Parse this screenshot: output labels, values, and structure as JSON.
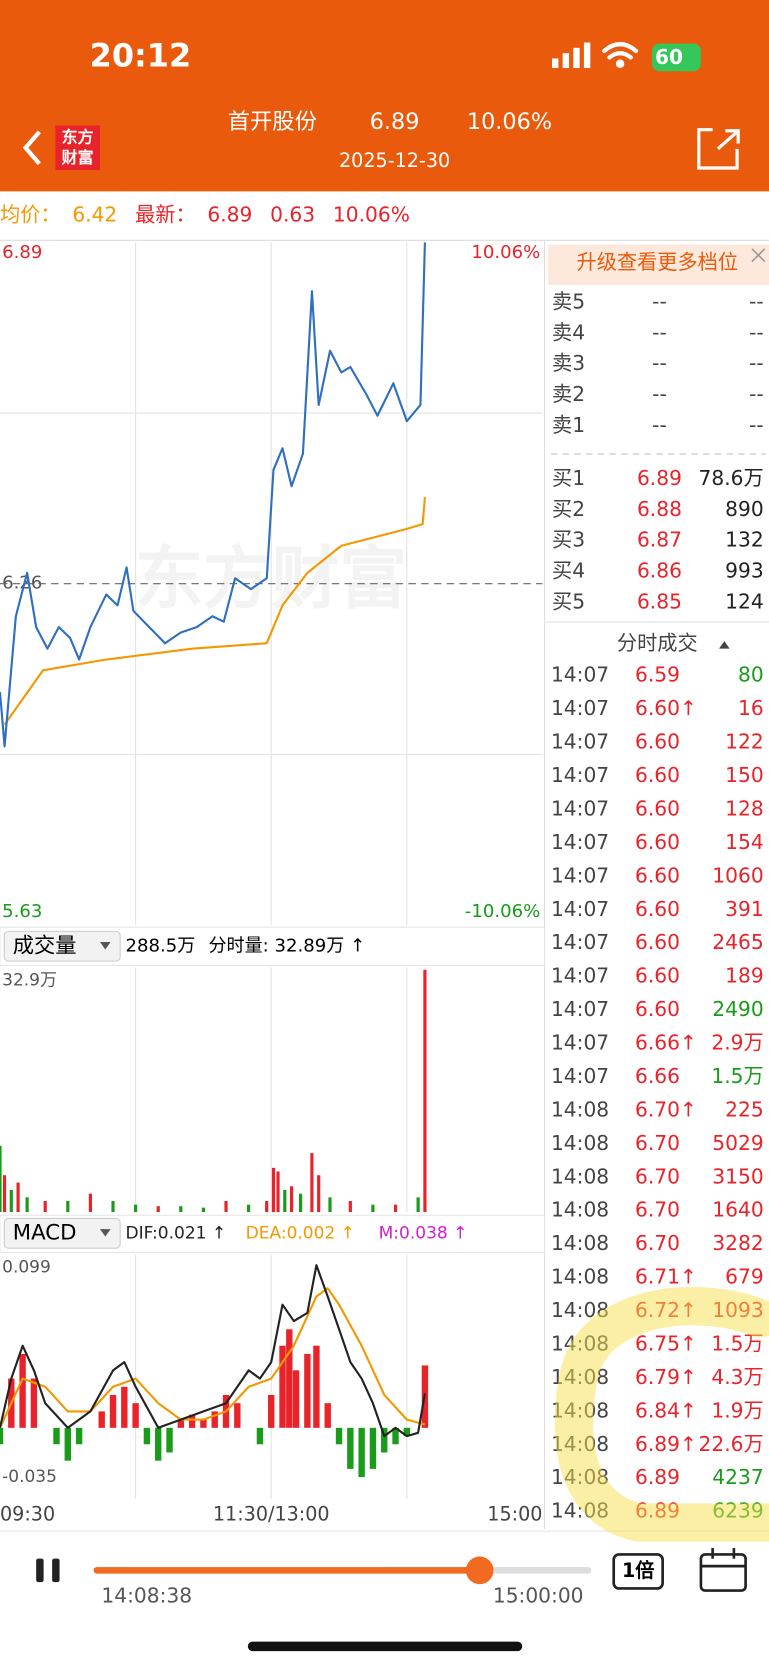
{
  "status_bar": {
    "time": "20:12",
    "battery": "60"
  },
  "header": {
    "logo": [
      "东方",
      "财富"
    ],
    "name": "首开股份",
    "price": "6.89",
    "change_pct": "10.06%",
    "date": "2025-12-30"
  },
  "quote": {
    "avg_label": "均价：",
    "avg": "6.42",
    "latest_label": "最新：",
    "latest": "6.89",
    "change": "0.63",
    "change_pct": "10.06%"
  },
  "intraday": {
    "xlim": [
      0,
      240
    ],
    "xticks": [
      {
        "value": 0,
        "label": "09:30"
      },
      {
        "value": 120,
        "label": "11:30/13:00"
      },
      {
        "value": 240,
        "label": "15:00"
      }
    ],
    "grid_x": [
      60,
      120,
      180
    ],
    "ylim": [
      5.63,
      6.89
    ],
    "yticks": [
      5.63,
      6.26,
      6.89
    ],
    "pct_labels": [
      "10.06%",
      "-10.06%"
    ],
    "watermark": "东方财富",
    "price": {
      "color": "#2f6fc0",
      "x": [
        0,
        2,
        7,
        12,
        16,
        21,
        26,
        31,
        35,
        40,
        47,
        52,
        56,
        59,
        66,
        73,
        80,
        87,
        94,
        99,
        104,
        111,
        118,
        121,
        125,
        129,
        134,
        138,
        141,
        146,
        151,
        155,
        162,
        167,
        174,
        180,
        186,
        188
      ],
      "values": [
        6.06,
        5.96,
        6.2,
        6.28,
        6.18,
        6.14,
        6.18,
        6.16,
        6.12,
        6.18,
        6.24,
        6.22,
        6.29,
        6.21,
        6.18,
        6.15,
        6.17,
        6.18,
        6.2,
        6.19,
        6.27,
        6.25,
        6.27,
        6.47,
        6.51,
        6.44,
        6.5,
        6.8,
        6.59,
        6.69,
        6.65,
        6.66,
        6.61,
        6.57,
        6.63,
        6.56,
        6.59,
        6.89
      ]
    },
    "avg": {
      "color": "#f39800",
      "x": [
        2,
        19,
        47,
        85,
        118,
        125,
        136,
        151,
        179,
        187,
        188
      ],
      "values": [
        6.0,
        6.1,
        6.12,
        6.14,
        6.15,
        6.22,
        6.28,
        6.33,
        6.36,
        6.37,
        6.42
      ]
    }
  },
  "volume": {
    "selector": "成交量",
    "total": "288.5万",
    "current": "分时量: 32.89万 ↑",
    "ylim": [
      0,
      32.9
    ],
    "yticks": [
      {
        "value": 32.9,
        "label": "32.9万"
      }
    ],
    "x": [
      0,
      2,
      5,
      8,
      12,
      20,
      30,
      40,
      50,
      60,
      70,
      80,
      90,
      100,
      110,
      118,
      121,
      123,
      126,
      129,
      133,
      138,
      141,
      146,
      155,
      165,
      175,
      185,
      188
    ],
    "values": [
      9,
      5,
      3,
      4,
      2,
      1.5,
      1.5,
      2.5,
      1.5,
      1,
      0.8,
      0.8,
      0.6,
      1.5,
      1,
      1.5,
      6,
      5.5,
      3,
      3.5,
      2.5,
      8,
      5,
      2,
      1.5,
      1,
      1,
      2,
      32.89
    ],
    "colors": [
      "#1a9b1a",
      "#e8232a",
      "#1a9b1a",
      "#e8232a",
      "#1a9b1a",
      "#e8232a",
      "#1a9b1a",
      "#e8232a",
      "#1a9b1a",
      "#1a9b1a",
      "#e8232a",
      "#1a9b1a",
      "#1a9b1a",
      "#e8232a",
      "#1a9b1a",
      "#e8232a",
      "#e8232a",
      "#e8232a",
      "#1a9b1a",
      "#e8232a",
      "#1a9b1a",
      "#e8232a",
      "#e8232a",
      "#1a9b1a",
      "#e8232a",
      "#1a9b1a",
      "#e8232a",
      "#1a9b1a",
      "#e8232a"
    ]
  },
  "macd": {
    "selector": "MACD",
    "dif_label": "DIF:0.021 ↑",
    "dea_label": "DEA:0.002 ↑",
    "m_label": "M:0.038 ↑",
    "ylim": [
      -0.035,
      0.099
    ],
    "yticks": [
      0.099,
      -0.035
    ],
    "hist": {
      "x": [
        0,
        5,
        10,
        15,
        20,
        25,
        30,
        35,
        40,
        45,
        50,
        55,
        60,
        65,
        70,
        75,
        80,
        85,
        90,
        95,
        100,
        105,
        110,
        115,
        120,
        125,
        128,
        131,
        136,
        140,
        145,
        150,
        155,
        160,
        165,
        170,
        175,
        180,
        185,
        188
      ],
      "values": [
        -0.01,
        0.03,
        0.045,
        0.03,
        0.0,
        -0.01,
        -0.02,
        -0.01,
        0.0,
        0.01,
        0.02,
        0.025,
        0.015,
        -0.01,
        -0.02,
        -0.015,
        0.005,
        0.008,
        0.005,
        0.01,
        0.02,
        0.015,
        0.0,
        -0.01,
        0.02,
        0.05,
        0.06,
        0.035,
        0.045,
        0.05,
        0.015,
        -0.01,
        -0.025,
        -0.03,
        -0.025,
        -0.015,
        -0.01,
        -0.005,
        0.0,
        0.038
      ]
    },
    "dif": {
      "color": "#222222",
      "x": [
        0,
        5,
        10,
        15,
        20,
        30,
        40,
        50,
        55,
        60,
        70,
        80,
        90,
        100,
        110,
        115,
        120,
        125,
        130,
        136,
        140,
        145,
        150,
        155,
        160,
        165,
        170,
        175,
        180,
        185,
        188
      ],
      "values": [
        0.0,
        0.03,
        0.05,
        0.035,
        0.015,
        0.0,
        0.01,
        0.035,
        0.04,
        0.025,
        0.0,
        0.005,
        0.01,
        0.015,
        0.035,
        0.03,
        0.04,
        0.075,
        0.065,
        0.07,
        0.099,
        0.08,
        0.06,
        0.04,
        0.03,
        0.015,
        -0.005,
        0.0,
        -0.005,
        -0.003,
        0.021
      ]
    },
    "dea": {
      "color": "#f39800",
      "x": [
        0,
        10,
        20,
        30,
        40,
        50,
        60,
        70,
        80,
        90,
        100,
        110,
        120,
        130,
        140,
        145,
        150,
        160,
        170,
        180,
        188
      ],
      "values": [
        0.0,
        0.03,
        0.025,
        0.01,
        0.01,
        0.025,
        0.03,
        0.015,
        0.005,
        0.005,
        0.01,
        0.025,
        0.03,
        0.05,
        0.08,
        0.085,
        0.075,
        0.05,
        0.02,
        0.005,
        0.002
      ]
    }
  },
  "order_book": {
    "banner": "升级查看更多档位",
    "asks": [
      {
        "label": "卖5",
        "price": "--",
        "volume": "--"
      },
      {
        "label": "卖4",
        "price": "--",
        "volume": "--"
      },
      {
        "label": "卖3",
        "price": "--",
        "volume": "--"
      },
      {
        "label": "卖2",
        "price": "--",
        "volume": "--"
      },
      {
        "label": "卖1",
        "price": "--",
        "volume": "--"
      }
    ],
    "bids": [
      {
        "label": "买1",
        "price": "6.89",
        "volume": "78.6万"
      },
      {
        "label": "买2",
        "price": "6.88",
        "volume": "890"
      },
      {
        "label": "买3",
        "price": "6.87",
        "volume": "132"
      },
      {
        "label": "买4",
        "price": "6.86",
        "volume": "993"
      },
      {
        "label": "买5",
        "price": "6.85",
        "volume": "124"
      }
    ]
  },
  "trades": {
    "title": "分时成交",
    "rows": [
      {
        "time": "14:07",
        "price": "6.59",
        "volume": "80",
        "color": "#1a9b1a"
      },
      {
        "time": "14:07",
        "price": "6.60↑",
        "volume": "16",
        "color": "#e8232a"
      },
      {
        "time": "14:07",
        "price": "6.60",
        "volume": "122",
        "color": "#e8232a"
      },
      {
        "time": "14:07",
        "price": "6.60",
        "volume": "150",
        "color": "#e8232a"
      },
      {
        "time": "14:07",
        "price": "6.60",
        "volume": "128",
        "color": "#e8232a"
      },
      {
        "time": "14:07",
        "price": "6.60",
        "volume": "154",
        "color": "#e8232a"
      },
      {
        "time": "14:07",
        "price": "6.60",
        "volume": "1060",
        "color": "#e8232a"
      },
      {
        "time": "14:07",
        "price": "6.60",
        "volume": "391",
        "color": "#e8232a"
      },
      {
        "time": "14:07",
        "price": "6.60",
        "volume": "2465",
        "color": "#e8232a"
      },
      {
        "time": "14:07",
        "price": "6.60",
        "volume": "189",
        "color": "#e8232a"
      },
      {
        "time": "14:07",
        "price": "6.60",
        "volume": "2490",
        "color": "#1a9b1a"
      },
      {
        "time": "14:07",
        "price": "6.66↑",
        "volume": "2.9万",
        "color": "#e8232a"
      },
      {
        "time": "14:07",
        "price": "6.66",
        "volume": "1.5万",
        "color": "#1a9b1a"
      },
      {
        "time": "14:08",
        "price": "6.70↑",
        "volume": "225",
        "color": "#e8232a"
      },
      {
        "time": "14:08",
        "price": "6.70",
        "volume": "5029",
        "color": "#e8232a"
      },
      {
        "time": "14:08",
        "price": "6.70",
        "volume": "3150",
        "color": "#e8232a"
      },
      {
        "time": "14:08",
        "price": "6.70",
        "volume": "1640",
        "color": "#e8232a"
      },
      {
        "time": "14:08",
        "price": "6.70",
        "volume": "3282",
        "color": "#e8232a"
      },
      {
        "time": "14:08",
        "price": "6.71↑",
        "volume": "679",
        "color": "#e8232a"
      },
      {
        "time": "14:08",
        "price": "6.72↑",
        "volume": "1093",
        "color": "#e8232a"
      },
      {
        "time": "14:08",
        "price": "6.75↑",
        "volume": "1.5万",
        "color": "#e8232a"
      },
      {
        "time": "14:08",
        "price": "6.79↑",
        "volume": "4.3万",
        "color": "#e8232a"
      },
      {
        "time": "14:08",
        "price": "6.84↑",
        "volume": "1.9万",
        "color": "#e8232a"
      },
      {
        "time": "14:08",
        "price": "6.89↑",
        "volume": "22.6万",
        "color": "#e8232a"
      },
      {
        "time": "14:08",
        "price": "6.89",
        "volume": "4237",
        "color": "#1a9b1a"
      },
      {
        "time": "14:08",
        "price": "6.89",
        "volume": "6239",
        "color": "#1a9b1a"
      }
    ]
  },
  "playback": {
    "current": "14:08:38",
    "end": "15:00:00",
    "speed": "1倍"
  }
}
